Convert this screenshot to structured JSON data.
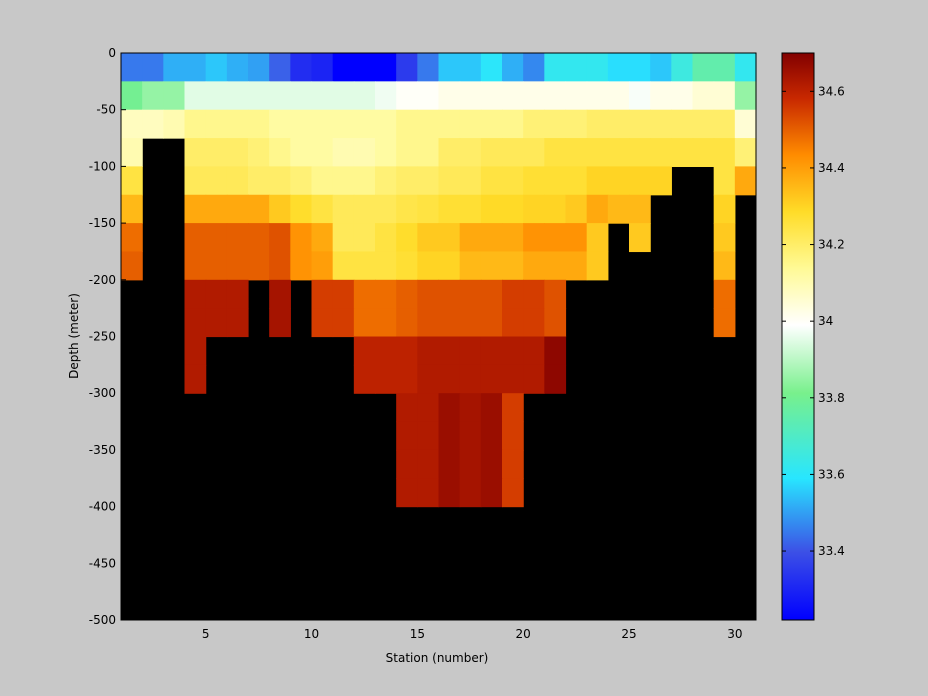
{
  "chart_data": {
    "type": "heatmap",
    "title": "",
    "xlabel": "Station (number)",
    "ylabel": "Depth (meter)",
    "xlim": [
      1,
      31
    ],
    "ylim": [
      -500,
      0
    ],
    "x_ticks": [
      5,
      10,
      15,
      20,
      25,
      30
    ],
    "y_ticks": [
      0,
      -50,
      -100,
      -150,
      -200,
      -250,
      -300,
      -350,
      -400,
      -450,
      -500
    ],
    "x_tick_labels": [
      "5",
      "10",
      "15",
      "20",
      "25",
      "30"
    ],
    "y_tick_labels": [
      "0",
      "-50",
      "-100",
      "-150",
      "-200",
      "-250",
      "-300",
      "-350",
      "-400",
      "-450",
      "-500"
    ],
    "colorbar": {
      "colormap": "jet-like with white center",
      "range": [
        33.22,
        34.7
      ],
      "ticks": [
        33.4,
        33.6,
        33.8,
        34,
        34.2,
        34.4,
        34.6
      ],
      "tick_labels": [
        "33.4",
        "33.6",
        "33.8",
        "34",
        "34.2",
        "34.4",
        "34.6"
      ],
      "location": "right"
    },
    "no_data_color": "#000000",
    "stations": [
      1,
      2,
      3,
      4,
      5,
      6,
      7,
      8,
      9,
      10,
      11,
      12,
      13,
      14,
      15,
      16,
      17,
      18,
      19,
      20,
      21,
      22,
      23,
      24,
      25,
      26,
      27,
      28,
      29,
      30
    ],
    "depths": [
      0,
      -25,
      -50,
      -75,
      -100,
      -125,
      -150,
      -175,
      -200,
      -225,
      -250,
      -275,
      -300,
      -325,
      -350,
      -375,
      -400,
      -425,
      -450,
      -475,
      -500
    ],
    "values": [
      [
        33.45,
        33.45,
        33.52,
        33.52,
        33.55,
        33.52,
        33.5,
        33.42,
        33.32,
        33.3,
        33.22,
        33.22,
        33.22,
        33.35,
        33.45,
        33.55,
        33.55,
        33.6,
        33.52,
        33.47,
        33.62,
        33.62,
        33.62,
        33.58,
        33.58,
        33.55,
        33.65,
        33.75,
        33.75,
        33.62
      ],
      [
        33.8,
        33.85,
        33.85,
        33.95,
        33.95,
        33.95,
        33.95,
        33.95,
        33.95,
        33.95,
        33.95,
        33.95,
        33.97,
        34.0,
        34.0,
        34.02,
        34.02,
        34.02,
        34.02,
        34.02,
        34.02,
        34.02,
        34.02,
        34.02,
        33.98,
        34.02,
        34.02,
        34.05,
        34.05,
        33.85
      ],
      [
        34.08,
        34.08,
        34.1,
        34.15,
        34.15,
        34.15,
        34.15,
        34.12,
        34.12,
        34.12,
        34.12,
        34.12,
        34.12,
        34.15,
        34.15,
        34.15,
        34.15,
        34.15,
        34.15,
        34.18,
        34.18,
        34.18,
        34.2,
        34.2,
        34.2,
        34.2,
        34.2,
        34.2,
        34.2,
        34.05
      ],
      [
        34.1,
        null,
        null,
        34.2,
        34.2,
        34.2,
        34.18,
        34.15,
        34.12,
        34.12,
        34.1,
        34.1,
        34.12,
        34.15,
        34.15,
        34.2,
        34.2,
        34.22,
        34.22,
        34.22,
        34.25,
        34.25,
        34.25,
        34.25,
        34.25,
        34.25,
        34.25,
        34.25,
        34.25,
        34.18
      ],
      [
        34.25,
        null,
        null,
        34.22,
        34.22,
        34.22,
        34.2,
        34.2,
        34.18,
        34.15,
        34.15,
        34.15,
        34.18,
        34.2,
        34.2,
        34.22,
        34.22,
        34.25,
        34.25,
        34.27,
        34.27,
        34.27,
        34.3,
        34.3,
        34.3,
        34.3,
        null,
        null,
        34.25,
        34.38
      ],
      [
        34.35,
        null,
        null,
        34.38,
        34.38,
        34.38,
        34.38,
        34.32,
        34.28,
        34.25,
        34.22,
        34.22,
        34.22,
        34.24,
        34.25,
        34.27,
        34.27,
        34.29,
        34.29,
        34.3,
        34.3,
        34.32,
        34.38,
        34.35,
        34.35,
        null,
        null,
        null,
        34.3,
        null
      ],
      [
        34.48,
        null,
        null,
        34.5,
        34.5,
        34.5,
        34.5,
        34.52,
        34.42,
        34.38,
        34.22,
        34.22,
        34.25,
        34.28,
        34.32,
        34.32,
        34.38,
        34.38,
        34.38,
        34.42,
        34.42,
        34.42,
        34.32,
        null,
        34.32,
        null,
        null,
        null,
        34.32,
        null
      ],
      [
        34.5,
        null,
        null,
        34.5,
        34.5,
        34.5,
        34.5,
        34.52,
        34.42,
        34.4,
        34.25,
        34.25,
        34.25,
        34.27,
        34.3,
        34.3,
        34.35,
        34.35,
        34.35,
        34.38,
        34.38,
        34.38,
        34.32,
        null,
        null,
        null,
        null,
        null,
        34.35,
        null
      ],
      [
        null,
        null,
        null,
        34.62,
        34.62,
        34.62,
        null,
        34.64,
        null,
        34.55,
        34.55,
        34.48,
        34.48,
        34.5,
        34.52,
        34.52,
        34.52,
        34.52,
        34.55,
        34.55,
        34.52,
        null,
        null,
        null,
        null,
        null,
        null,
        null,
        34.48,
        null
      ],
      [
        null,
        null,
        null,
        34.62,
        34.62,
        34.62,
        null,
        34.64,
        null,
        34.55,
        34.55,
        34.48,
        34.48,
        34.5,
        34.52,
        34.52,
        34.52,
        34.52,
        34.55,
        34.55,
        34.52,
        null,
        null,
        null,
        null,
        null,
        null,
        null,
        34.48,
        null
      ],
      [
        null,
        null,
        null,
        34.62,
        null,
        null,
        null,
        null,
        null,
        null,
        null,
        34.6,
        34.6,
        34.6,
        34.62,
        34.62,
        34.62,
        34.62,
        34.62,
        34.62,
        34.68,
        null,
        null,
        null,
        null,
        null,
        null,
        null,
        null,
        null
      ],
      [
        null,
        null,
        null,
        34.62,
        null,
        null,
        null,
        null,
        null,
        null,
        null,
        34.6,
        34.6,
        34.6,
        34.62,
        34.62,
        34.62,
        34.62,
        34.62,
        34.62,
        34.68,
        null,
        null,
        null,
        null,
        null,
        null,
        null,
        null,
        null
      ],
      [
        null,
        null,
        null,
        null,
        null,
        null,
        null,
        null,
        null,
        null,
        null,
        null,
        null,
        34.62,
        34.62,
        34.66,
        34.64,
        34.66,
        34.55,
        null,
        null,
        null,
        null,
        null,
        null,
        null,
        null,
        null,
        null,
        null
      ],
      [
        null,
        null,
        null,
        null,
        null,
        null,
        null,
        null,
        null,
        null,
        null,
        null,
        null,
        34.62,
        34.62,
        34.66,
        34.64,
        34.66,
        34.55,
        null,
        null,
        null,
        null,
        null,
        null,
        null,
        null,
        null,
        null,
        null
      ],
      [
        null,
        null,
        null,
        null,
        null,
        null,
        null,
        null,
        null,
        null,
        null,
        null,
        null,
        34.62,
        34.62,
        34.66,
        34.64,
        34.66,
        34.55,
        null,
        null,
        null,
        null,
        null,
        null,
        null,
        null,
        null,
        null,
        null
      ],
      [
        null,
        null,
        null,
        null,
        null,
        null,
        null,
        null,
        null,
        null,
        null,
        null,
        null,
        34.62,
        34.62,
        34.66,
        34.64,
        34.66,
        34.55,
        null,
        null,
        null,
        null,
        null,
        null,
        null,
        null,
        null,
        null,
        null
      ],
      [
        null,
        null,
        null,
        null,
        null,
        null,
        null,
        null,
        null,
        null,
        null,
        null,
        null,
        null,
        null,
        null,
        null,
        null,
        null,
        null,
        null,
        null,
        null,
        null,
        null,
        null,
        null,
        null,
        null,
        null
      ],
      [
        null,
        null,
        null,
        null,
        null,
        null,
        null,
        null,
        null,
        null,
        null,
        null,
        null,
        null,
        null,
        null,
        null,
        null,
        null,
        null,
        null,
        null,
        null,
        null,
        null,
        null,
        null,
        null,
        null,
        null
      ],
      [
        null,
        null,
        null,
        null,
        null,
        null,
        null,
        null,
        null,
        null,
        null,
        null,
        null,
        null,
        null,
        null,
        null,
        null,
        null,
        null,
        null,
        null,
        null,
        null,
        null,
        null,
        null,
        null,
        null,
        null
      ],
      [
        null,
        null,
        null,
        null,
        null,
        null,
        null,
        null,
        null,
        null,
        null,
        null,
        null,
        null,
        null,
        null,
        null,
        null,
        null,
        null,
        null,
        null,
        null,
        null,
        null,
        null,
        null,
        null,
        null,
        null
      ]
    ]
  }
}
